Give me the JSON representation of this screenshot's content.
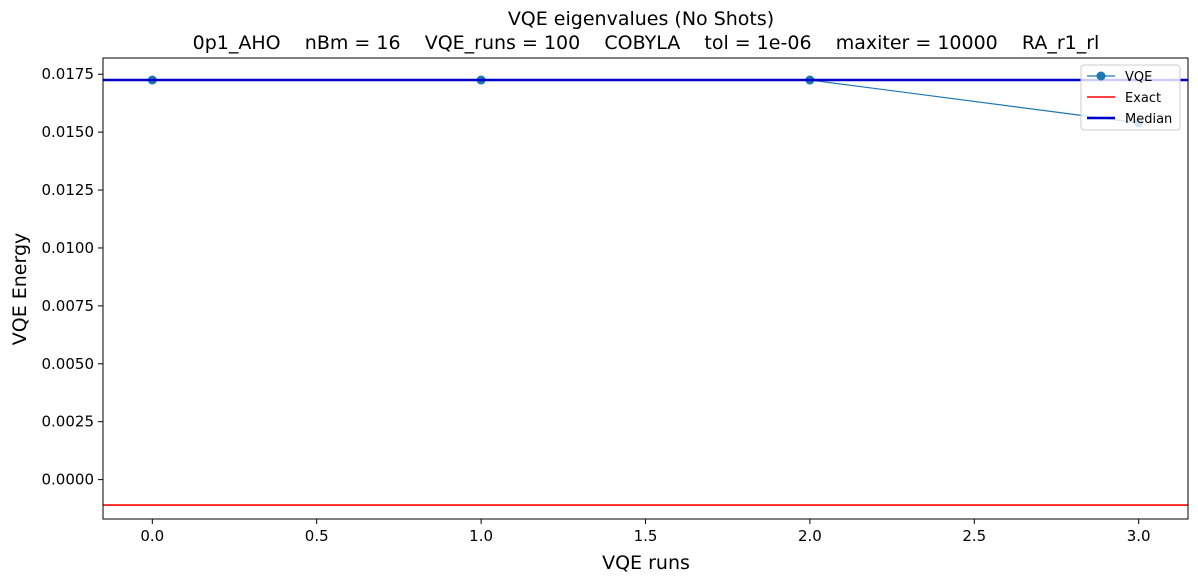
{
  "chart_data": {
    "type": "line",
    "title": "VQE eigenvalues (No Shots)",
    "subtitle": "0p1_AHO    nBm = 16    VQE_runs = 100    COBYLA    tol = 1e-06    maxiter = 10000    RA_r1_rl",
    "xlabel": "VQE runs",
    "ylabel": "VQE Energy",
    "xlim": [
      -0.15,
      3.15
    ],
    "ylim": [
      -0.0017,
      0.0182
    ],
    "x_ticks": [
      0.0,
      0.5,
      1.0,
      1.5,
      2.0,
      2.5,
      3.0
    ],
    "x_tick_labels": [
      "0.0",
      "0.5",
      "1.0",
      "1.5",
      "2.0",
      "2.5",
      "3.0"
    ],
    "y_ticks": [
      0.0,
      0.0025,
      0.005,
      0.0075,
      0.01,
      0.0125,
      0.015,
      0.0175
    ],
    "y_tick_labels": [
      "0.0000",
      "0.0025",
      "0.0050",
      "0.0075",
      "0.0100",
      "0.0125",
      "0.0150",
      "0.0175"
    ],
    "grid": false,
    "legend_position": "top-right",
    "series": [
      {
        "name": "VQE",
        "kind": "line-marker",
        "color": "#1f77b4",
        "x": [
          0,
          1,
          2,
          3
        ],
        "y": [
          0.01725,
          0.01725,
          0.01725,
          0.0154
        ]
      },
      {
        "name": "Exact",
        "kind": "hline",
        "color": "#ff0000",
        "y": -0.0011
      },
      {
        "name": "Median",
        "kind": "hline",
        "color": "#0000cc",
        "y": 0.01725
      }
    ]
  }
}
